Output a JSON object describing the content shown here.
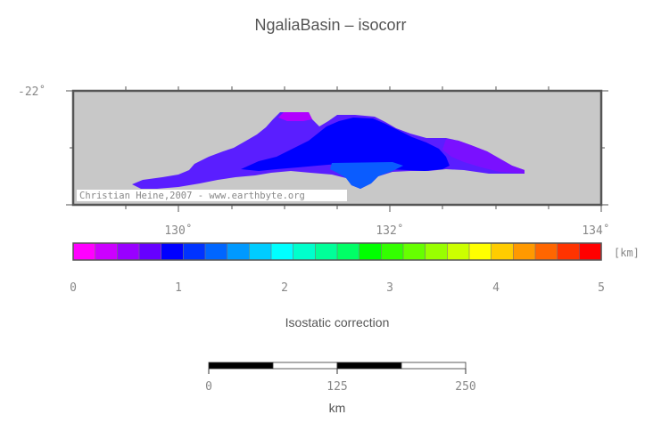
{
  "map": {
    "title": "NgaliaBasin – isocorr",
    "lat_label": "-22˚",
    "lon_labels": [
      "130˚",
      "132˚",
      "134˚"
    ],
    "background_color": "#c8c8c8",
    "credit": "Christian Heine,2007 - www.earthbyte.org"
  },
  "colorbar": {
    "unit": "[km]",
    "tick_labels": [
      "0",
      "1",
      "2",
      "3",
      "4",
      "5"
    ],
    "label": "Isostatic correction",
    "colors": [
      "#ff00ff",
      "#cc00ff",
      "#9900ff",
      "#6600ff",
      "#0000ff",
      "#0033ff",
      "#0066ff",
      "#0099ff",
      "#00ccff",
      "#00ffff",
      "#00ffcc",
      "#00ff99",
      "#00ff66",
      "#00ff00",
      "#33ff00",
      "#66ff00",
      "#99ff00",
      "#ccff00",
      "#ffff00",
      "#ffcc00",
      "#ff9900",
      "#ff6600",
      "#ff3300",
      "#ff0000"
    ]
  },
  "scalebar": {
    "tick_labels": [
      "0",
      "125",
      "250"
    ],
    "unit": "km"
  }
}
